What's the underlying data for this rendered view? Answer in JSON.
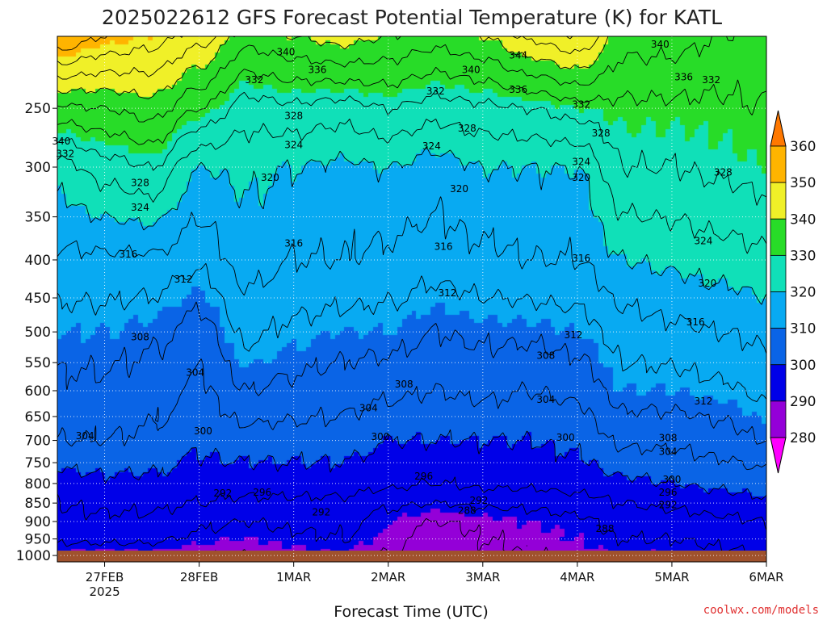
{
  "chart_data": {
    "type": "contour",
    "title": "2025022612 GFS Forecast Potential Temperature (K) for KATL",
    "xlabel": "Forecast Time (UTC)",
    "ylabel": "",
    "y_scale": "pressure",
    "y_axis_unit": "hPa",
    "y_ticks": [
      250,
      300,
      350,
      400,
      450,
      500,
      550,
      600,
      650,
      700,
      750,
      800,
      850,
      900,
      950,
      1000
    ],
    "y_range": [
      1020,
      200
    ],
    "x_ticks": [
      {
        "label": "27FEB",
        "sublabel": "2025",
        "time": "2025-02-27T00"
      },
      {
        "label": "28FEB",
        "time": "2025-02-28T00"
      },
      {
        "label": "1MAR",
        "time": "2025-03-01T00"
      },
      {
        "label": "2MAR",
        "time": "2025-03-02T00"
      },
      {
        "label": "3MAR",
        "time": "2025-03-03T00"
      },
      {
        "label": "4MAR",
        "time": "2025-03-04T00"
      },
      {
        "label": "5MAR",
        "time": "2025-03-05T00"
      },
      {
        "label": "6MAR",
        "time": "2025-03-06T00"
      }
    ],
    "x_range": [
      "2025-02-26T12",
      "2025-03-06T00"
    ],
    "grid": true,
    "colorbar": {
      "labels": [
        280,
        290,
        300,
        310,
        320,
        330,
        340,
        350,
        360
      ],
      "bins": [
        {
          "from": 270,
          "to": 280,
          "color": "#ff00ff"
        },
        {
          "from": 280,
          "to": 290,
          "color": "#9400d8"
        },
        {
          "from": 290,
          "to": 300,
          "color": "#0000e8"
        },
        {
          "from": 300,
          "to": 310,
          "color": "#0a64e6"
        },
        {
          "from": 310,
          "to": 320,
          "color": "#08aaf2"
        },
        {
          "from": 320,
          "to": 330,
          "color": "#10e0b8"
        },
        {
          "from": 330,
          "to": 340,
          "color": "#28dc28"
        },
        {
          "from": 340,
          "to": 350,
          "color": "#f0f028"
        },
        {
          "from": 350,
          "to": 360,
          "color": "#ffb400"
        },
        {
          "from": 360,
          "to": 370,
          "color": "#ff7800"
        }
      ]
    },
    "ground_color": "#a0522d",
    "contour_interval_K": 4,
    "profiles": [
      {
        "time": "2025-02-26T12",
        "theta": [
          [
            1000,
            289
          ],
          [
            950,
            293
          ],
          [
            900,
            295
          ],
          [
            850,
            296
          ],
          [
            800,
            298
          ],
          [
            700,
            304
          ],
          [
            600,
            307
          ],
          [
            500,
            310
          ],
          [
            400,
            315
          ],
          [
            300,
            322
          ],
          [
            250,
            335
          ],
          [
            200,
            356
          ]
        ]
      },
      {
        "time": "2025-02-27T00",
        "theta": [
          [
            1000,
            289
          ],
          [
            950,
            293
          ],
          [
            900,
            295
          ],
          [
            850,
            297
          ],
          [
            800,
            299
          ],
          [
            700,
            304
          ],
          [
            600,
            307
          ],
          [
            500,
            310
          ],
          [
            400,
            315
          ],
          [
            300,
            326
          ],
          [
            250,
            336
          ],
          [
            200,
            352
          ]
        ]
      },
      {
        "time": "2025-02-27T12",
        "theta": [
          [
            1000,
            289
          ],
          [
            950,
            293
          ],
          [
            900,
            295
          ],
          [
            850,
            297
          ],
          [
            800,
            299
          ],
          [
            700,
            303
          ],
          [
            600,
            306
          ],
          [
            500,
            309
          ],
          [
            400,
            315
          ],
          [
            300,
            328
          ],
          [
            250,
            338
          ],
          [
            200,
            350
          ]
        ]
      },
      {
        "time": "2025-02-28T00",
        "theta": [
          [
            1000,
            288
          ],
          [
            950,
            291
          ],
          [
            900,
            293
          ],
          [
            850,
            296
          ],
          [
            800,
            298
          ],
          [
            700,
            301
          ],
          [
            600,
            303
          ],
          [
            500,
            306
          ],
          [
            400,
            313
          ],
          [
            300,
            320
          ],
          [
            250,
            332
          ],
          [
            200,
            346
          ]
        ]
      },
      {
        "time": "2025-02-28T12",
        "theta": [
          [
            1000,
            288
          ],
          [
            950,
            290
          ],
          [
            900,
            292
          ],
          [
            850,
            295
          ],
          [
            800,
            298
          ],
          [
            700,
            302
          ],
          [
            600,
            308
          ],
          [
            500,
            313
          ],
          [
            400,
            318
          ],
          [
            300,
            321
          ],
          [
            250,
            326
          ],
          [
            200,
            338
          ]
        ]
      },
      {
        "time": "2025-03-01T00",
        "theta": [
          [
            1000,
            289
          ],
          [
            950,
            291
          ],
          [
            900,
            293
          ],
          [
            850,
            295
          ],
          [
            800,
            298
          ],
          [
            700,
            302
          ],
          [
            600,
            307
          ],
          [
            500,
            311
          ],
          [
            400,
            316
          ],
          [
            300,
            320
          ],
          [
            250,
            327
          ],
          [
            200,
            340
          ]
        ]
      },
      {
        "time": "2025-03-01T12",
        "theta": [
          [
            1000,
            290
          ],
          [
            950,
            292
          ],
          [
            900,
            293
          ],
          [
            850,
            295
          ],
          [
            800,
            298
          ],
          [
            700,
            302
          ],
          [
            600,
            306
          ],
          [
            500,
            310
          ],
          [
            400,
            316
          ],
          [
            300,
            319
          ],
          [
            250,
            326
          ],
          [
            200,
            342
          ]
        ]
      },
      {
        "time": "2025-03-02T00",
        "theta": [
          [
            1000,
            288
          ],
          [
            950,
            289
          ],
          [
            900,
            290
          ],
          [
            850,
            293
          ],
          [
            800,
            297
          ],
          [
            700,
            300
          ],
          [
            600,
            305
          ],
          [
            500,
            310
          ],
          [
            400,
            315
          ],
          [
            300,
            320
          ],
          [
            250,
            328
          ],
          [
            200,
            340
          ]
        ]
      },
      {
        "time": "2025-03-02T12",
        "theta": [
          [
            1000,
            285
          ],
          [
            950,
            286
          ],
          [
            900,
            288
          ],
          [
            850,
            292
          ],
          [
            800,
            296
          ],
          [
            700,
            300
          ],
          [
            600,
            304
          ],
          [
            500,
            308
          ],
          [
            400,
            314
          ],
          [
            300,
            318
          ],
          [
            250,
            326
          ],
          [
            200,
            338
          ]
        ]
      },
      {
        "time": "2025-03-03T00",
        "theta": [
          [
            1000,
            287
          ],
          [
            950,
            288
          ],
          [
            900,
            289
          ],
          [
            850,
            293
          ],
          [
            800,
            297
          ],
          [
            700,
            300
          ],
          [
            600,
            305
          ],
          [
            500,
            309
          ],
          [
            400,
            315
          ],
          [
            300,
            320
          ],
          [
            250,
            327
          ],
          [
            200,
            340
          ]
        ]
      },
      {
        "time": "2025-03-03T12",
        "theta": [
          [
            1000,
            288
          ],
          [
            950,
            289
          ],
          [
            900,
            290
          ],
          [
            850,
            293
          ],
          [
            800,
            297
          ],
          [
            700,
            300
          ],
          [
            600,
            304
          ],
          [
            500,
            309
          ],
          [
            400,
            316
          ],
          [
            300,
            320
          ],
          [
            250,
            328
          ],
          [
            200,
            345
          ]
        ]
      },
      {
        "time": "2025-03-04T00",
        "theta": [
          [
            1000,
            289
          ],
          [
            950,
            290
          ],
          [
            900,
            291
          ],
          [
            850,
            294
          ],
          [
            800,
            298
          ],
          [
            700,
            301
          ],
          [
            600,
            305
          ],
          [
            500,
            310
          ],
          [
            400,
            316
          ],
          [
            300,
            320
          ],
          [
            250,
            330
          ],
          [
            200,
            348
          ]
        ]
      },
      {
        "time": "2025-03-04T12",
        "theta": [
          [
            1000,
            290
          ],
          [
            950,
            292
          ],
          [
            900,
            294
          ],
          [
            850,
            296
          ],
          [
            800,
            299
          ],
          [
            700,
            305
          ],
          [
            600,
            310
          ],
          [
            500,
            314
          ],
          [
            400,
            320
          ],
          [
            300,
            328
          ],
          [
            250,
            331
          ],
          [
            200,
            338
          ]
        ]
      },
      {
        "time": "2025-03-05T00",
        "theta": [
          [
            1000,
            290
          ],
          [
            950,
            292
          ],
          [
            900,
            294
          ],
          [
            850,
            297
          ],
          [
            800,
            300
          ],
          [
            700,
            305
          ],
          [
            600,
            310
          ],
          [
            500,
            315
          ],
          [
            400,
            321
          ],
          [
            300,
            328
          ],
          [
            250,
            331
          ],
          [
            200,
            338
          ]
        ]
      },
      {
        "time": "2025-03-05T12",
        "theta": [
          [
            1000,
            291
          ],
          [
            950,
            293
          ],
          [
            900,
            295
          ],
          [
            850,
            298
          ],
          [
            800,
            301
          ],
          [
            700,
            306
          ],
          [
            600,
            311
          ],
          [
            500,
            316
          ],
          [
            400,
            322
          ],
          [
            300,
            329
          ],
          [
            250,
            331
          ],
          [
            200,
            336
          ]
        ]
      },
      {
        "time": "2025-03-06T00",
        "theta": [
          [
            1000,
            292
          ],
          [
            950,
            294
          ],
          [
            900,
            296
          ],
          [
            850,
            299
          ],
          [
            800,
            302
          ],
          [
            700,
            308
          ],
          [
            600,
            313
          ],
          [
            500,
            317
          ],
          [
            400,
            323
          ],
          [
            300,
            330
          ],
          [
            250,
            332
          ],
          [
            200,
            334
          ]
        ]
      }
    ],
    "contour_labels": [
      {
        "v": 340,
        "t": "2025-02-26T13",
        "p": 277
      },
      {
        "v": 332,
        "t": "2025-02-26T14",
        "p": 288
      },
      {
        "v": 328,
        "t": "2025-02-27T09",
        "p": 315
      },
      {
        "v": 324,
        "t": "2025-02-27T09",
        "p": 340
      },
      {
        "v": 316,
        "t": "2025-02-27T06",
        "p": 393
      },
      {
        "v": 312,
        "t": "2025-02-27T20",
        "p": 425
      },
      {
        "v": 308,
        "t": "2025-02-27T09",
        "p": 508
      },
      {
        "v": 304,
        "t": "2025-02-26T19",
        "p": 690
      },
      {
        "v": 304,
        "t": "2025-02-27T23",
        "p": 567
      },
      {
        "v": 300,
        "t": "2025-02-28T01",
        "p": 680
      },
      {
        "v": 292,
        "t": "2025-02-28T06",
        "p": 825
      },
      {
        "v": 296,
        "t": "2025-02-28T16",
        "p": 822
      },
      {
        "v": 332,
        "t": "2025-02-28T14",
        "p": 229
      },
      {
        "v": 340,
        "t": "2025-02-28T22",
        "p": 210
      },
      {
        "v": 336,
        "t": "2025-03-01T06",
        "p": 222
      },
      {
        "v": 328,
        "t": "2025-03-01T00",
        "p": 256
      },
      {
        "v": 324,
        "t": "2025-03-01T00",
        "p": 280
      },
      {
        "v": 320,
        "t": "2025-02-28T18",
        "p": 310
      },
      {
        "v": 316,
        "t": "2025-03-01T00",
        "p": 380
      },
      {
        "v": 292,
        "t": "2025-03-01T07",
        "p": 875
      },
      {
        "v": 300,
        "t": "2025-03-01T22",
        "p": 692
      },
      {
        "v": 304,
        "t": "2025-03-01T19",
        "p": 633
      },
      {
        "v": 308,
        "t": "2025-03-02T04",
        "p": 588
      },
      {
        "v": 332,
        "t": "2025-03-02T12",
        "p": 237
      },
      {
        "v": 340,
        "t": "2025-03-02T21",
        "p": 222
      },
      {
        "v": 344,
        "t": "2025-03-03T09",
        "p": 212
      },
      {
        "v": 336,
        "t": "2025-03-03T09",
        "p": 236
      },
      {
        "v": 328,
        "t": "2025-03-02T20",
        "p": 266
      },
      {
        "v": 324,
        "t": "2025-03-02T11",
        "p": 281
      },
      {
        "v": 320,
        "t": "2025-03-02T18",
        "p": 321
      },
      {
        "v": 316,
        "t": "2025-03-02T14",
        "p": 384
      },
      {
        "v": 312,
        "t": "2025-03-02T15",
        "p": 443
      },
      {
        "v": 296,
        "t": "2025-03-02T09",
        "p": 782
      },
      {
        "v": 288,
        "t": "2025-03-02T20",
        "p": 870
      },
      {
        "v": 292,
        "t": "2025-03-02T23",
        "p": 843
      },
      {
        "v": 308,
        "t": "2025-03-03T16",
        "p": 538
      },
      {
        "v": 304,
        "t": "2025-03-03T16",
        "p": 617
      },
      {
        "v": 300,
        "t": "2025-03-03T21",
        "p": 694
      },
      {
        "v": 332,
        "t": "2025-03-04T01",
        "p": 247
      },
      {
        "v": 328,
        "t": "2025-03-04T06",
        "p": 270
      },
      {
        "v": 324,
        "t": "2025-03-04T01",
        "p": 295
      },
      {
        "v": 320,
        "t": "2025-03-04T01",
        "p": 310
      },
      {
        "v": 316,
        "t": "2025-03-04T01",
        "p": 398
      },
      {
        "v": 312,
        "t": "2025-03-03T23",
        "p": 505
      },
      {
        "v": 340,
        "t": "2025-03-04T21",
        "p": 205
      },
      {
        "v": 336,
        "t": "2025-03-05T03",
        "p": 227
      },
      {
        "v": 332,
        "t": "2025-03-05T10",
        "p": 229
      },
      {
        "v": 328,
        "t": "2025-03-05T13",
        "p": 305
      },
      {
        "v": 324,
        "t": "2025-03-05T08",
        "p": 377
      },
      {
        "v": 320,
        "t": "2025-03-05T09",
        "p": 430
      },
      {
        "v": 316,
        "t": "2025-03-05T06",
        "p": 485
      },
      {
        "v": 312,
        "t": "2025-03-05T08",
        "p": 620
      },
      {
        "v": 308,
        "t": "2025-03-04T23",
        "p": 695
      },
      {
        "v": 304,
        "t": "2025-03-04T23",
        "p": 725
      },
      {
        "v": 300,
        "t": "2025-03-05T00",
        "p": 790
      },
      {
        "v": 296,
        "t": "2025-03-04T23",
        "p": 822
      },
      {
        "v": 292,
        "t": "2025-03-04T23",
        "p": 855
      },
      {
        "v": 288,
        "t": "2025-03-04T07",
        "p": 920
      }
    ]
  },
  "credit": "coolwx.com/models"
}
